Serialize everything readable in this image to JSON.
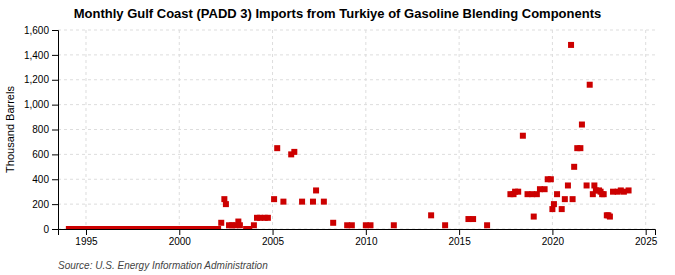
{
  "chart_data": {
    "type": "scatter",
    "title": "Monthly Gulf Coast (PADD 3) Imports from Turkiye of Gasoline Blending Components",
    "ylabel": "Thousand Barrels",
    "annotations": [
      "Source: U.S. Energy Information Administration"
    ],
    "color": "#cc0000",
    "marker": "square",
    "grid": true,
    "xlim": [
      1993.5,
      2025.5
    ],
    "ylim": [
      0,
      1600
    ],
    "xticks": [
      1995,
      2000,
      2005,
      2010,
      2015,
      2020,
      2025
    ],
    "yticks": [
      0,
      200,
      400,
      600,
      800,
      {
        "value": 1000,
        "label": "1,000"
      },
      {
        "value": 1200,
        "label": "1,200"
      },
      {
        "value": 1400,
        "label": "1,400"
      },
      {
        "value": 1600,
        "label": "1,600"
      }
    ],
    "x": [
      1994.083,
      1994.167,
      1994.25,
      1994.333,
      1994.417,
      1994.5,
      1994.583,
      1994.667,
      1994.75,
      1994.833,
      1994.917,
      1995.0,
      1995.083,
      1995.167,
      1995.25,
      1995.333,
      1995.417,
      1995.5,
      1995.583,
      1995.667,
      1995.75,
      1995.833,
      1995.917,
      1996.0,
      1996.083,
      1996.167,
      1996.25,
      1996.333,
      1996.417,
      1996.5,
      1996.583,
      1996.667,
      1996.75,
      1996.833,
      1996.917,
      1997.0,
      1997.083,
      1997.167,
      1997.25,
      1997.333,
      1997.417,
      1997.5,
      1997.583,
      1997.667,
      1997.75,
      1997.833,
      1997.917,
      1998.0,
      1998.083,
      1998.167,
      1998.25,
      1998.333,
      1998.417,
      1998.5,
      1998.583,
      1998.667,
      1998.75,
      1998.833,
      1998.917,
      1999.0,
      1999.083,
      1999.167,
      1999.25,
      1999.333,
      1999.417,
      1999.5,
      1999.583,
      1999.667,
      1999.75,
      1999.833,
      1999.917,
      2000.0,
      2000.083,
      2000.167,
      2000.25,
      2000.333,
      2000.417,
      2000.5,
      2000.583,
      2000.667,
      2000.75,
      2000.833,
      2000.917,
      2001.0,
      2001.083,
      2001.167,
      2001.25,
      2001.333,
      2001.417,
      2001.5,
      2001.583,
      2001.667,
      2001.75,
      2001.833,
      2001.917,
      2002.0,
      2002.083,
      2002.25,
      2002.417,
      2002.5,
      2002.667,
      2002.833,
      2003.0,
      2003.167,
      2003.25,
      2003.583,
      2003.75,
      2004.0,
      2004.167,
      2004.333,
      2004.583,
      2004.75,
      2005.083,
      2005.25,
      2005.583,
      2006.0,
      2006.167,
      2006.583,
      2007.167,
      2007.333,
      2007.75,
      2008.25,
      2009.0,
      2009.25,
      2010.0,
      2010.25,
      2011.5,
      2013.5,
      2014.25,
      2015.5,
      2015.75,
      2016.5,
      2017.75,
      2017.917,
      2018.0,
      2018.167,
      2018.417,
      2018.667,
      2018.917,
      2019.0,
      2019.167,
      2019.333,
      2019.583,
      2019.75,
      2019.917,
      2020.0,
      2020.083,
      2020.25,
      2020.5,
      2020.667,
      2020.833,
      2021.0,
      2021.083,
      2021.167,
      2021.333,
      2021.5,
      2021.583,
      2021.833,
      2022.0,
      2022.167,
      2022.25,
      2022.333,
      2022.5,
      2022.583,
      2022.667,
      2022.75,
      2022.917,
      2023.0,
      2023.083,
      2023.25,
      2023.5,
      2023.667,
      2023.833,
      2024.083
    ],
    "values": [
      0,
      0,
      0,
      0,
      0,
      0,
      0,
      0,
      0,
      0,
      0,
      0,
      0,
      0,
      0,
      0,
      0,
      0,
      0,
      0,
      0,
      0,
      0,
      0,
      0,
      0,
      0,
      0,
      0,
      0,
      0,
      0,
      0,
      0,
      0,
      0,
      0,
      0,
      0,
      0,
      0,
      0,
      0,
      0,
      0,
      0,
      0,
      0,
      0,
      0,
      0,
      0,
      0,
      0,
      0,
      0,
      0,
      0,
      0,
      0,
      0,
      0,
      0,
      0,
      0,
      0,
      0,
      0,
      0,
      0,
      0,
      0,
      0,
      0,
      0,
      0,
      0,
      0,
      0,
      0,
      0,
      0,
      0,
      0,
      0,
      0,
      0,
      0,
      0,
      0,
      0,
      0,
      0,
      0,
      0,
      0,
      0,
      50,
      240,
      200,
      30,
      30,
      30,
      60,
      30,
      0,
      0,
      30,
      90,
      90,
      90,
      90,
      240,
      650,
      220,
      600,
      620,
      220,
      220,
      310,
      220,
      50,
      30,
      30,
      30,
      30,
      30,
      110,
      30,
      80,
      80,
      30,
      280,
      280,
      300,
      300,
      750,
      280,
      280,
      100,
      280,
      320,
      320,
      400,
      400,
      160,
      200,
      280,
      160,
      240,
      350,
      1480,
      240,
      500,
      650,
      650,
      840,
      350,
      1160,
      280,
      350,
      310,
      310,
      300,
      280,
      280,
      110,
      110,
      100,
      300,
      300,
      310,
      300,
      310
    ]
  }
}
